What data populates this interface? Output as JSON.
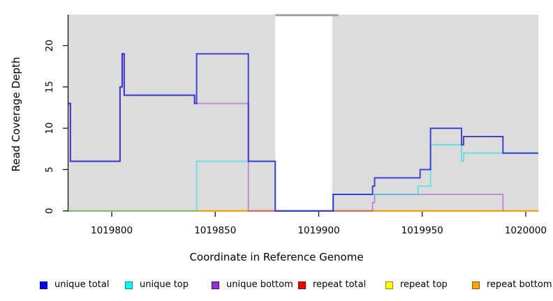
{
  "chart_data": {
    "type": "line",
    "subtype": "step",
    "title": "",
    "xlabel": "Coordinate in Reference Genome",
    "ylabel": "Read Coverage Depth",
    "xlim": [
      1019778.9,
      1020006.1
    ],
    "ylim": [
      0,
      23.75
    ],
    "xticks": [
      1019800,
      1019850,
      1019900,
      1019950,
      1020000
    ],
    "yticks": [
      0,
      5,
      10,
      15,
      20
    ],
    "grid": false,
    "plot_background_color": "#dcdcdc",
    "background_blocks": [
      [
        1019778.9,
        1019879
      ],
      [
        1019906.5,
        1020006.1
      ]
    ],
    "gap_region": [
      1019879,
      1019906.5
    ],
    "clipped_top_segment": {
      "from": 1019879,
      "to": 1019909.5,
      "color": "#9e9e9e"
    },
    "series": [
      {
        "name": "unique total",
        "color": "#1c1cd2",
        "opacity": 0.8,
        "width": 2,
        "steps": [
          [
            1019779,
            13
          ],
          [
            1019780,
            6
          ],
          [
            1019804,
            15
          ],
          [
            1019805,
            19
          ],
          [
            1019806,
            14
          ],
          [
            1019840,
            13
          ],
          [
            1019841,
            19
          ],
          [
            1019866,
            6
          ],
          [
            1019879,
            0
          ],
          [
            1019907,
            2
          ],
          [
            1019926,
            3
          ],
          [
            1019927,
            4
          ],
          [
            1019949,
            5
          ],
          [
            1019954,
            10
          ],
          [
            1019969,
            8
          ],
          [
            1019970,
            9
          ],
          [
            1019989,
            7
          ]
        ]
      },
      {
        "name": "unique top",
        "color": "#00dcee",
        "opacity": 0.55,
        "width": 1.8,
        "steps": [
          [
            1019779,
            0
          ],
          [
            1019841,
            6
          ],
          [
            1019879,
            0
          ],
          [
            1019907,
            2
          ],
          [
            1019948,
            3
          ],
          [
            1019954,
            8
          ],
          [
            1019969,
            6
          ],
          [
            1019970,
            7
          ]
        ]
      },
      {
        "name": "unique bottom",
        "color": "#9932cc",
        "opacity": 0.5,
        "width": 1.8,
        "end_at": 1019989,
        "steps": [
          [
            1019779,
            13
          ],
          [
            1019780,
            6
          ],
          [
            1019804,
            15
          ],
          [
            1019805,
            19
          ],
          [
            1019806,
            14
          ],
          [
            1019840,
            13
          ],
          [
            1019866,
            0
          ],
          [
            1019926,
            1
          ],
          [
            1019927,
            2
          ],
          [
            1019989,
            0
          ]
        ]
      },
      {
        "name": "repeat total",
        "color": "#dd1111",
        "opacity": 0.85,
        "width": 1.8,
        "steps": [
          [
            1019779,
            0
          ]
        ]
      },
      {
        "name": "repeat top",
        "color": "#eeee00",
        "opacity": 0.9,
        "width": 1.8,
        "steps": [
          [
            1019779,
            0
          ]
        ]
      },
      {
        "name": "repeat bottom",
        "color": "#ff9900",
        "opacity": 0.95,
        "width": 1.8,
        "steps": [
          [
            1019779,
            0
          ]
        ]
      }
    ],
    "draw_order": [
      3,
      4,
      5,
      2,
      1,
      0
    ],
    "legend": [
      {
        "label": "unique total",
        "fill": "#0000ee",
        "border": "#00008b"
      },
      {
        "label": "unique top",
        "fill": "#00ffff",
        "border": "#008b8b"
      },
      {
        "label": "unique bottom",
        "fill": "#9932cc",
        "border": "#4b0082"
      },
      {
        "label": "repeat total",
        "fill": "#ee0000",
        "border": "#8b0000"
      },
      {
        "label": "repeat top",
        "fill": "#ffff00",
        "border": "#8b8b00"
      },
      {
        "label": "repeat bottom",
        "fill": "#ffa500",
        "border": "#8b5a00"
      }
    ],
    "legend_position": "bottom"
  }
}
